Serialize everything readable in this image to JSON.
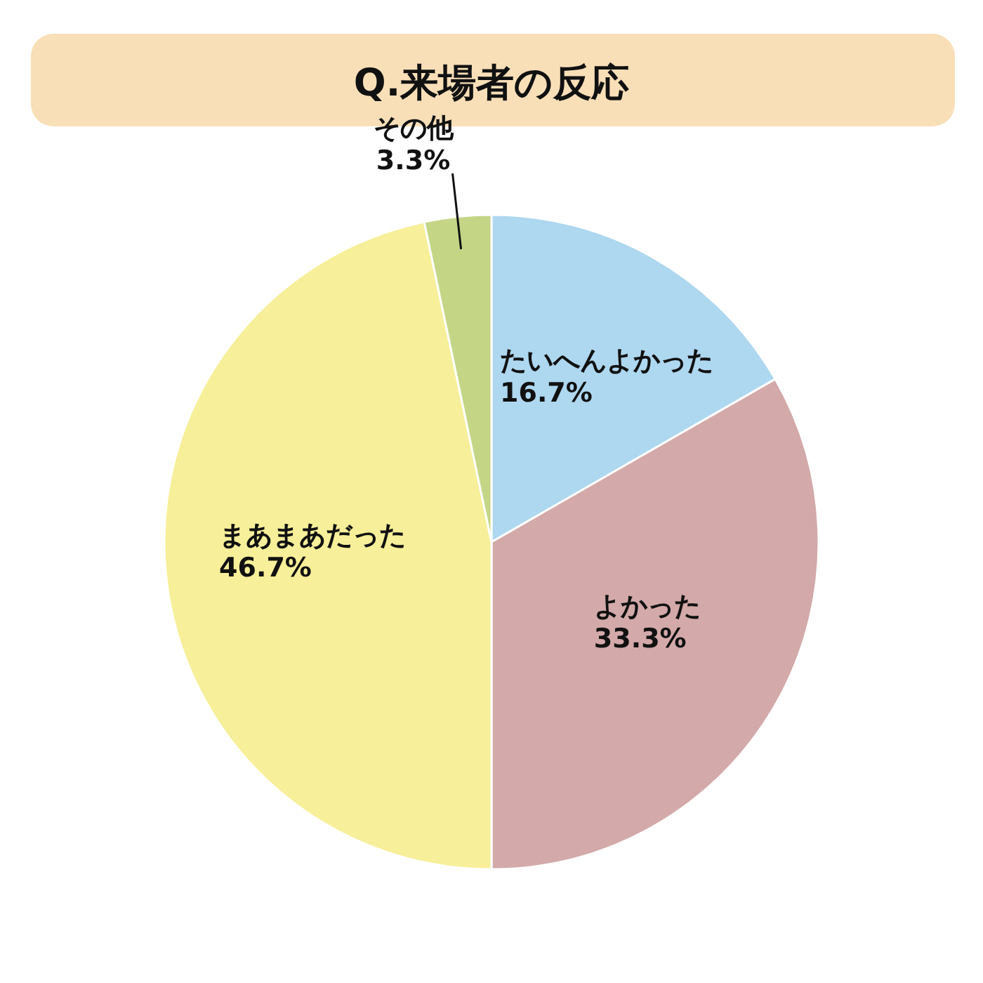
{
  "chart_data": {
    "type": "pie",
    "title": "Q.来場者の反応",
    "categories": [
      "たいへんよかった",
      "よかった",
      "まあまあだった",
      "その他"
    ],
    "values": [
      16.7,
      33.3,
      46.7,
      3.3
    ],
    "colors": [
      "#aed7f0",
      "#d3a9a9",
      "#f7ef99",
      "#c4d686"
    ],
    "value_labels": [
      "16.7%",
      "33.3%",
      "46.7%",
      "3.3%"
    ]
  }
}
